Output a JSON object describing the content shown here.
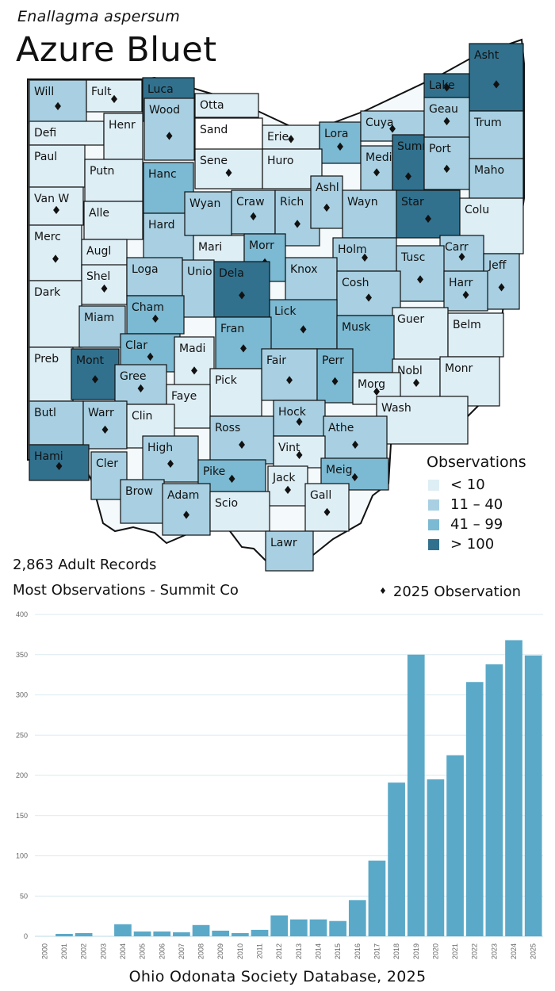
{
  "title": {
    "scientific_name": "Enallagma aspersum",
    "common_name": "Azure Bluet"
  },
  "legend": {
    "title": "Observations",
    "bins": [
      {
        "label": "< 10",
        "color": "#deeef5"
      },
      {
        "label": "11 – 40",
        "color": "#a8d0e2"
      },
      {
        "label": "41 – 99",
        "color": "#7cb9d2"
      },
      {
        "label": "> 100",
        "color": "#31718e"
      }
    ],
    "marker_label": "2025  Observation",
    "marker_symbol": "♦"
  },
  "summary": {
    "records": "2,863 Adult Records",
    "most_observations": "Most Observations - Summit Co"
  },
  "counties": [
    {
      "name": "Will",
      "bin": 1,
      "obs2025": true
    },
    {
      "name": "Fult",
      "bin": 0,
      "obs2025": true
    },
    {
      "name": "Luca",
      "bin": 3,
      "obs2025": true
    },
    {
      "name": "Otta",
      "bin": 0,
      "obs2025": false
    },
    {
      "name": "Lake",
      "bin": 3,
      "obs2025": true
    },
    {
      "name": "Asht",
      "bin": 3,
      "obs2025": true
    },
    {
      "name": "Defi",
      "bin": 0,
      "obs2025": false
    },
    {
      "name": "Henr",
      "bin": 0,
      "obs2025": false
    },
    {
      "name": "Wood",
      "bin": 1,
      "obs2025": true
    },
    {
      "name": "Sand",
      "bin": -1,
      "obs2025": false
    },
    {
      "name": "Erie",
      "bin": 0,
      "obs2025": true
    },
    {
      "name": "Lora",
      "bin": 2,
      "obs2025": true
    },
    {
      "name": "Cuya",
      "bin": 1,
      "obs2025": true
    },
    {
      "name": "Geau",
      "bin": 1,
      "obs2025": true
    },
    {
      "name": "Trum",
      "bin": 1,
      "obs2025": false
    },
    {
      "name": "Paul",
      "bin": 0,
      "obs2025": false
    },
    {
      "name": "Putn",
      "bin": 0,
      "obs2025": false
    },
    {
      "name": "Hanc",
      "bin": 2,
      "obs2025": false
    },
    {
      "name": "Sene",
      "bin": 0,
      "obs2025": true
    },
    {
      "name": "Huro",
      "bin": 0,
      "obs2025": false
    },
    {
      "name": "Medi",
      "bin": 1,
      "obs2025": true
    },
    {
      "name": "Summ",
      "bin": 3,
      "obs2025": true
    },
    {
      "name": "Port",
      "bin": 1,
      "obs2025": true
    },
    {
      "name": "Maho",
      "bin": 1,
      "obs2025": false
    },
    {
      "name": "Van W",
      "bin": 0,
      "obs2025": true
    },
    {
      "name": "Alle",
      "bin": 0,
      "obs2025": false
    },
    {
      "name": "Hard",
      "bin": 1,
      "obs2025": false
    },
    {
      "name": "Wyan",
      "bin": 1,
      "obs2025": false
    },
    {
      "name": "Craw",
      "bin": 1,
      "obs2025": true
    },
    {
      "name": "Rich",
      "bin": 1,
      "obs2025": true
    },
    {
      "name": "Ashl",
      "bin": 1,
      "obs2025": true
    },
    {
      "name": "Wayn",
      "bin": 1,
      "obs2025": false
    },
    {
      "name": "Star",
      "bin": 3,
      "obs2025": true
    },
    {
      "name": "Colu",
      "bin": 0,
      "obs2025": false
    },
    {
      "name": "Merc",
      "bin": 0,
      "obs2025": true
    },
    {
      "name": "Augl",
      "bin": 0,
      "obs2025": false
    },
    {
      "name": "Mari",
      "bin": 0,
      "obs2025": false
    },
    {
      "name": "Morr",
      "bin": 2,
      "obs2025": true
    },
    {
      "name": "Holm",
      "bin": 1,
      "obs2025": true
    },
    {
      "name": "Carr",
      "bin": 1,
      "obs2025": true
    },
    {
      "name": "Shel",
      "bin": 0,
      "obs2025": true
    },
    {
      "name": "Loga",
      "bin": 1,
      "obs2025": false
    },
    {
      "name": "Unio",
      "bin": 1,
      "obs2025": false
    },
    {
      "name": "Dela",
      "bin": 3,
      "obs2025": true
    },
    {
      "name": "Knox",
      "bin": 1,
      "obs2025": false
    },
    {
      "name": "Tusc",
      "bin": 1,
      "obs2025": true
    },
    {
      "name": "Jeff",
      "bin": 1,
      "obs2025": true
    },
    {
      "name": "Dark",
      "bin": 0,
      "obs2025": false
    },
    {
      "name": "Cosh",
      "bin": 1,
      "obs2025": true
    },
    {
      "name": "Harr",
      "bin": 1,
      "obs2025": true
    },
    {
      "name": "Miam",
      "bin": 1,
      "obs2025": false
    },
    {
      "name": "Cham",
      "bin": 2,
      "obs2025": true
    },
    {
      "name": "Lick",
      "bin": 2,
      "obs2025": true
    },
    {
      "name": "Guer",
      "bin": 0,
      "obs2025": false
    },
    {
      "name": "Belm",
      "bin": 0,
      "obs2025": false
    },
    {
      "name": "Clar",
      "bin": 2,
      "obs2025": true
    },
    {
      "name": "Fran",
      "bin": 2,
      "obs2025": true
    },
    {
      "name": "Musk",
      "bin": 2,
      "obs2025": false
    },
    {
      "name": "Madi",
      "bin": 0,
      "obs2025": true
    },
    {
      "name": "Preb",
      "bin": 0,
      "obs2025": false
    },
    {
      "name": "Mont",
      "bin": 3,
      "obs2025": true
    },
    {
      "name": "Fair",
      "bin": 1,
      "obs2025": true
    },
    {
      "name": "Perr",
      "bin": 2,
      "obs2025": true
    },
    {
      "name": "Nobl",
      "bin": 0,
      "obs2025": true
    },
    {
      "name": "Monr",
      "bin": 0,
      "obs2025": false
    },
    {
      "name": "Gree",
      "bin": 1,
      "obs2025": true
    },
    {
      "name": "Pick",
      "bin": 0,
      "obs2025": false
    },
    {
      "name": "Morg",
      "bin": 0,
      "obs2025": true
    },
    {
      "name": "Faye",
      "bin": 0,
      "obs2025": false
    },
    {
      "name": "Butl",
      "bin": 1,
      "obs2025": false
    },
    {
      "name": "Warr",
      "bin": 1,
      "obs2025": true
    },
    {
      "name": "Clin",
      "bin": 0,
      "obs2025": false
    },
    {
      "name": "Hock",
      "bin": 1,
      "obs2025": true
    },
    {
      "name": "Wash",
      "bin": 0,
      "obs2025": false
    },
    {
      "name": "Ross",
      "bin": 1,
      "obs2025": true
    },
    {
      "name": "Athe",
      "bin": 1,
      "obs2025": true
    },
    {
      "name": "Hami",
      "bin": 3,
      "obs2025": true
    },
    {
      "name": "High",
      "bin": 1,
      "obs2025": true
    },
    {
      "name": "Vint",
      "bin": 0,
      "obs2025": true
    },
    {
      "name": "Cler",
      "bin": 1,
      "obs2025": false
    },
    {
      "name": "Pike",
      "bin": 2,
      "obs2025": true
    },
    {
      "name": "Jack",
      "bin": 0,
      "obs2025": true
    },
    {
      "name": "Meig",
      "bin": 2,
      "obs2025": true
    },
    {
      "name": "Brow",
      "bin": 1,
      "obs2025": false
    },
    {
      "name": "Adam",
      "bin": 1,
      "obs2025": true
    },
    {
      "name": "Scio",
      "bin": 0,
      "obs2025": false
    },
    {
      "name": "Gall",
      "bin": 0,
      "obs2025": true
    },
    {
      "name": "Lawr",
      "bin": 1,
      "obs2025": false
    }
  ],
  "chart_data": {
    "type": "bar",
    "title": "",
    "xlabel": "",
    "ylabel": "",
    "categories": [
      "2000",
      "2001",
      "2002",
      "2003",
      "2004",
      "2005",
      "2006",
      "2007",
      "2008",
      "2009",
      "2010",
      "2011",
      "2012",
      "2013",
      "2014",
      "2015",
      "2016",
      "2017",
      "2018",
      "2019",
      "2020",
      "2021",
      "2022",
      "2023",
      "2024",
      "2025"
    ],
    "values": [
      0,
      3,
      4,
      0,
      15,
      6,
      6,
      5,
      14,
      7,
      4,
      8,
      26,
      21,
      21,
      19,
      45,
      94,
      191,
      350,
      195,
      225,
      316,
      338,
      368,
      349
    ],
    "ylim": [
      0,
      400
    ],
    "yticks": [
      0,
      50,
      100,
      150,
      200,
      250,
      300,
      350,
      400
    ],
    "color": "#5ba9c8",
    "grid": true
  },
  "footer": {
    "source": "Ohio Odonata Society Database, 2025"
  }
}
